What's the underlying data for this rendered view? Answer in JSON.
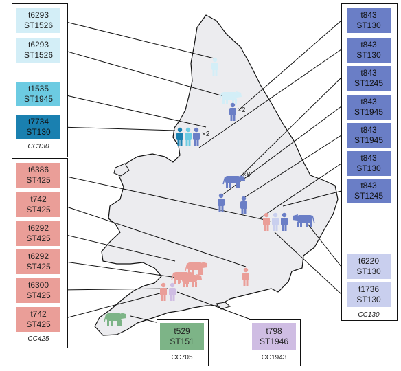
{
  "colors": {
    "cc130_lightest": "#d3eef7",
    "cc130_light": "#6ccbe2",
    "cc130_dark": "#1a80b0",
    "cc130_blue": "#6a7ec6",
    "cc130_pale": "#c9cfee",
    "cc425": "#ea9e98",
    "cc705": "#7db487",
    "cc1943": "#cfbde3",
    "map_fill": "#ececef"
  },
  "left_top_group": {
    "name": "CC130",
    "labels": [
      {
        "t": "t6293",
        "st": "ST1526",
        "color": "#d3eef7"
      },
      {
        "t": "t6293",
        "st": "ST1526",
        "color": "#d3eef7"
      },
      {
        "t": "t1535",
        "st": "ST1945",
        "color": "#6ccbe2"
      },
      {
        "t": "t7734",
        "st": "ST130",
        "color": "#1a80b0"
      }
    ]
  },
  "left_bottom_group": {
    "name": "CC425",
    "labels": [
      {
        "t": "t6386",
        "st": "ST425"
      },
      {
        "t": "t742",
        "st": "ST425"
      },
      {
        "t": "t6292",
        "st": "ST425"
      },
      {
        "t": "t6292",
        "st": "ST425"
      },
      {
        "t": "t6300",
        "st": "ST425"
      },
      {
        "t": "t742",
        "st": "ST425"
      }
    ]
  },
  "right_group": {
    "name": "CC130",
    "labels": [
      {
        "t": "t843",
        "st": "ST130",
        "color": "#6a7ec6"
      },
      {
        "t": "t843",
        "st": "ST130",
        "color": "#6a7ec6"
      },
      {
        "t": "t843",
        "st": "ST1245",
        "color": "#6a7ec6"
      },
      {
        "t": "t843",
        "st": "ST1945",
        "color": "#6a7ec6"
      },
      {
        "t": "t843",
        "st": "ST1945",
        "color": "#6a7ec6"
      },
      {
        "t": "t843",
        "st": "ST130",
        "color": "#6a7ec6"
      },
      {
        "t": "t843",
        "st": "ST1245",
        "color": "#6a7ec6"
      },
      {
        "t": "t6220",
        "st": "ST130",
        "color": "#c9cfee"
      },
      {
        "t": "t1736",
        "st": "ST130",
        "color": "#c9cfee"
      }
    ]
  },
  "cc705_group": {
    "name": "CC705",
    "label": {
      "t": "t529",
      "st": "ST151"
    }
  },
  "cc1943_group": {
    "name": "CC1943",
    "label": {
      "t": "t798",
      "st": "ST1946"
    }
  },
  "counts": {
    "x2_a": "×2",
    "x2_b": "×2",
    "x8": "×8"
  }
}
